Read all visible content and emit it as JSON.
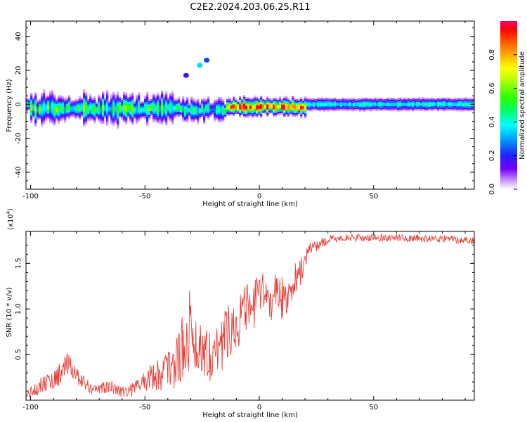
{
  "figure": {
    "title": "C2E2.2024.203.06.25.R11"
  },
  "chart_data": [
    {
      "type": "heatmap",
      "panel": "spectrogram",
      "title": "C2E2.2024.203.06.25.R11",
      "xlabel": "Height of straight line (km)",
      "ylabel": "Frequency (Hz)",
      "xlim": [
        -102,
        94
      ],
      "ylim": [
        -50,
        49
      ],
      "xticks": [
        -100,
        -50,
        0,
        50
      ],
      "yticks": [
        -40,
        -20,
        0,
        20,
        40
      ],
      "colorbar": {
        "label": "Normalized spectral amplitude",
        "range": [
          0,
          1
        ],
        "ticks": [
          "0.0",
          "0.2",
          "0.4",
          "0.6",
          "0.8"
        ],
        "colors": [
          "#ffffff",
          "#cc99ff",
          "#7700ff",
          "#2020ff",
          "#00a0ff",
          "#00ffff",
          "#00ff60",
          "#30ff00",
          "#aaff00",
          "#ffff00",
          "#ffaa00",
          "#ff5500",
          "#ff0000",
          "#ff0066"
        ]
      },
      "main_band": {
        "center_hz": 0,
        "segments": [
          {
            "x0": -101,
            "x1": -35,
            "center": -2.5,
            "halfwidth": 5,
            "peak": 0.42,
            "variability": "high"
          },
          {
            "x0": -35,
            "x1": -15,
            "center": -3,
            "halfwidth": 4,
            "peak": 0.38,
            "variability": "high"
          },
          {
            "x0": -15,
            "x1": 20,
            "center": -1.5,
            "halfwidth": 3,
            "peak": 0.85,
            "variability": "medium"
          },
          {
            "x0": 20,
            "x1": 94,
            "center": 0,
            "halfwidth": 2.5,
            "peak": 0.45,
            "variability": "low"
          }
        ]
      },
      "secondary_features": [
        {
          "x": -32,
          "y": 17,
          "amplitude": 0.2
        },
        {
          "x": -26,
          "y": 23,
          "amplitude": 0.35
        },
        {
          "x": -23,
          "y": 26,
          "amplitude": 0.25
        }
      ]
    },
    {
      "type": "line",
      "panel": "snr",
      "xlabel": "Height of straight line (km)",
      "ylabel": "SNR (10 * v/v)",
      "y_multiplier": "(x10",
      "y_multiplier_exp": "4",
      "y_multiplier_close": ")",
      "xlim": [
        -102,
        94
      ],
      "ylim": [
        0,
        1.85
      ],
      "xticks": [
        -100,
        -50,
        0,
        50
      ],
      "yticks": [
        0.5,
        1.0,
        1.5
      ],
      "ytick_labels": [
        "0.5",
        "1.0",
        "1.5"
      ],
      "color": "#e8403a",
      "series": [
        {
          "x": [
            -102,
            -95,
            -90,
            -84,
            -80,
            -75,
            -70,
            -65,
            -60,
            -55,
            -50,
            -45,
            -40,
            -35,
            -32,
            -30,
            -27,
            -25,
            -22,
            -20,
            -17,
            -15,
            -12,
            -10,
            -7,
            -5,
            -2,
            0,
            3,
            5,
            8,
            10,
            13,
            15,
            18,
            20,
            22,
            25,
            30,
            35,
            40,
            50,
            60,
            70,
            80,
            94
          ],
          "y": [
            0.05,
            0.18,
            0.22,
            0.38,
            0.28,
            0.15,
            0.12,
            0.15,
            0.1,
            0.12,
            0.22,
            0.28,
            0.35,
            0.45,
            0.7,
            0.8,
            0.55,
            0.6,
            0.5,
            0.55,
            0.55,
            0.75,
            0.8,
            0.85,
            0.95,
            1.0,
            1.05,
            1.15,
            1.15,
            1.1,
            1.2,
            1.1,
            1.2,
            1.3,
            1.4,
            1.55,
            1.65,
            1.7,
            1.75,
            1.78,
            1.78,
            1.78,
            1.78,
            1.77,
            1.77,
            1.75
          ],
          "noise": [
            0.05,
            0.1,
            0.12,
            0.14,
            0.1,
            0.08,
            0.07,
            0.07,
            0.07,
            0.08,
            0.12,
            0.18,
            0.25,
            0.3,
            0.45,
            0.45,
            0.3,
            0.35,
            0.3,
            0.3,
            0.3,
            0.3,
            0.3,
            0.3,
            0.3,
            0.28,
            0.28,
            0.25,
            0.25,
            0.25,
            0.3,
            0.25,
            0.22,
            0.2,
            0.15,
            0.12,
            0.08,
            0.07,
            0.05,
            0.04,
            0.04,
            0.04,
            0.04,
            0.04,
            0.04,
            0.04
          ]
        }
      ]
    }
  ]
}
